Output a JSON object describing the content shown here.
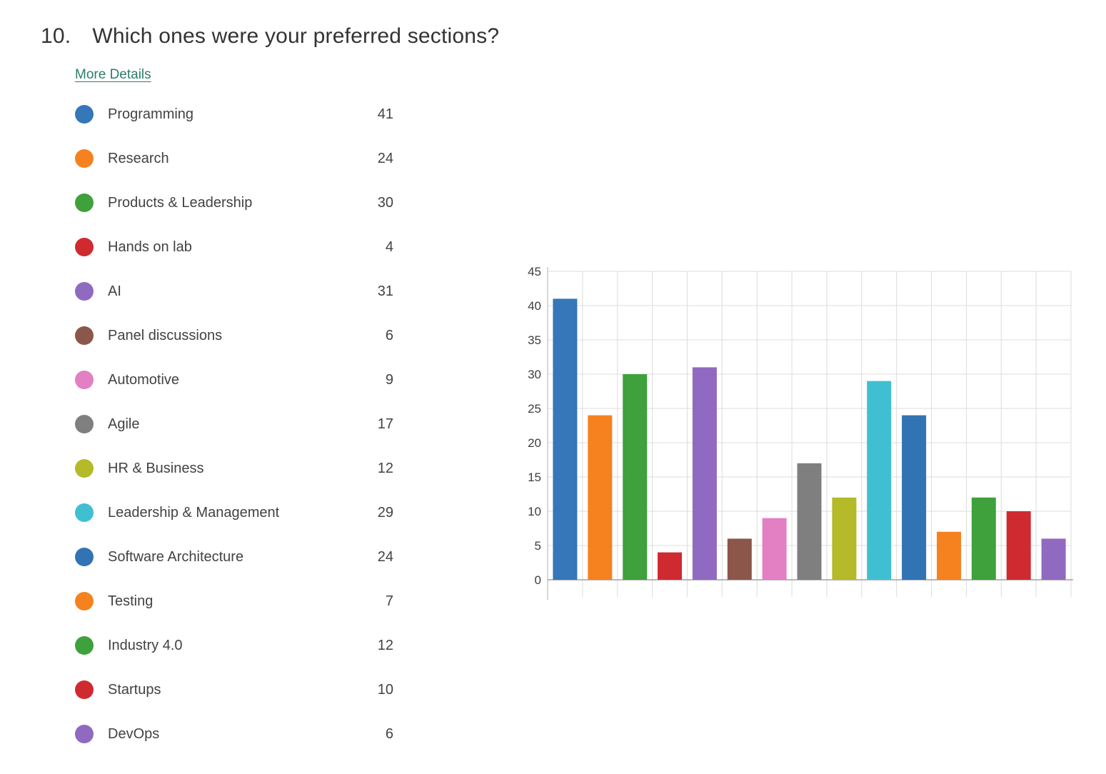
{
  "question": {
    "number": "10.",
    "title": "Which ones were your preferred sections?"
  },
  "links": {
    "more_details": "More Details"
  },
  "legend": {
    "items": [
      {
        "label": "Programming",
        "value": 41,
        "color": "#3577b8"
      },
      {
        "label": "Research",
        "value": 24,
        "color": "#f5821f"
      },
      {
        "label": "Products & Leadership",
        "value": 30,
        "color": "#3ea13b"
      },
      {
        "label": "Hands on lab",
        "value": 4,
        "color": "#d02a31"
      },
      {
        "label": "AI",
        "value": 31,
        "color": "#9069c0"
      },
      {
        "label": "Panel discussions",
        "value": 6,
        "color": "#8c564b"
      },
      {
        "label": "Automotive",
        "value": 9,
        "color": "#e37fc3"
      },
      {
        "label": "Agile",
        "value": 17,
        "color": "#7f7f7f"
      },
      {
        "label": "HR & Business",
        "value": 12,
        "color": "#b4ba28"
      },
      {
        "label": "Leadership & Management",
        "value": 29,
        "color": "#41bfd2"
      },
      {
        "label": "Software Architecture",
        "value": 24,
        "color": "#3273b3"
      },
      {
        "label": "Testing",
        "value": 7,
        "color": "#f5821f"
      },
      {
        "label": "Industry 4.0",
        "value": 12,
        "color": "#3ea13b"
      },
      {
        "label": "Startups",
        "value": 10,
        "color": "#d02a31"
      },
      {
        "label": "DevOps",
        "value": 6,
        "color": "#9069c0"
      }
    ]
  },
  "chart_data": {
    "type": "bar",
    "title": "",
    "xlabel": "",
    "ylabel": "",
    "categories": [
      "Programming",
      "Research",
      "Products & Leadership",
      "Hands on lab",
      "AI",
      "Panel discussions",
      "Automotive",
      "Agile",
      "HR & Business",
      "Leadership & Management",
      "Software Architecture",
      "Testing",
      "Industry 4.0",
      "Startups",
      "DevOps"
    ],
    "values": [
      41,
      24,
      30,
      4,
      31,
      6,
      9,
      17,
      12,
      29,
      24,
      7,
      12,
      10,
      6
    ],
    "colors": [
      "#3577b8",
      "#f5821f",
      "#3ea13b",
      "#d02a31",
      "#9069c0",
      "#8c564b",
      "#e37fc3",
      "#7f7f7f",
      "#b4ba28",
      "#41bfd2",
      "#3273b3",
      "#f5821f",
      "#3ea13b",
      "#d02a31",
      "#9069c0"
    ],
    "ylim": [
      0,
      45
    ],
    "yticks": [
      0,
      5,
      10,
      15,
      20,
      25,
      30,
      35,
      40,
      45
    ],
    "grid": true,
    "x_tick_labels_shown": false,
    "legend_position": "left-list"
  },
  "colors": {
    "link": "#2e7d6b",
    "title_text": "#333333",
    "legend_text": "#424242",
    "axis_text": "#3d3d3d",
    "gridline": "#dcdcdc",
    "axisline": "#bdbdbd",
    "baseline": "#a0a0a0"
  }
}
